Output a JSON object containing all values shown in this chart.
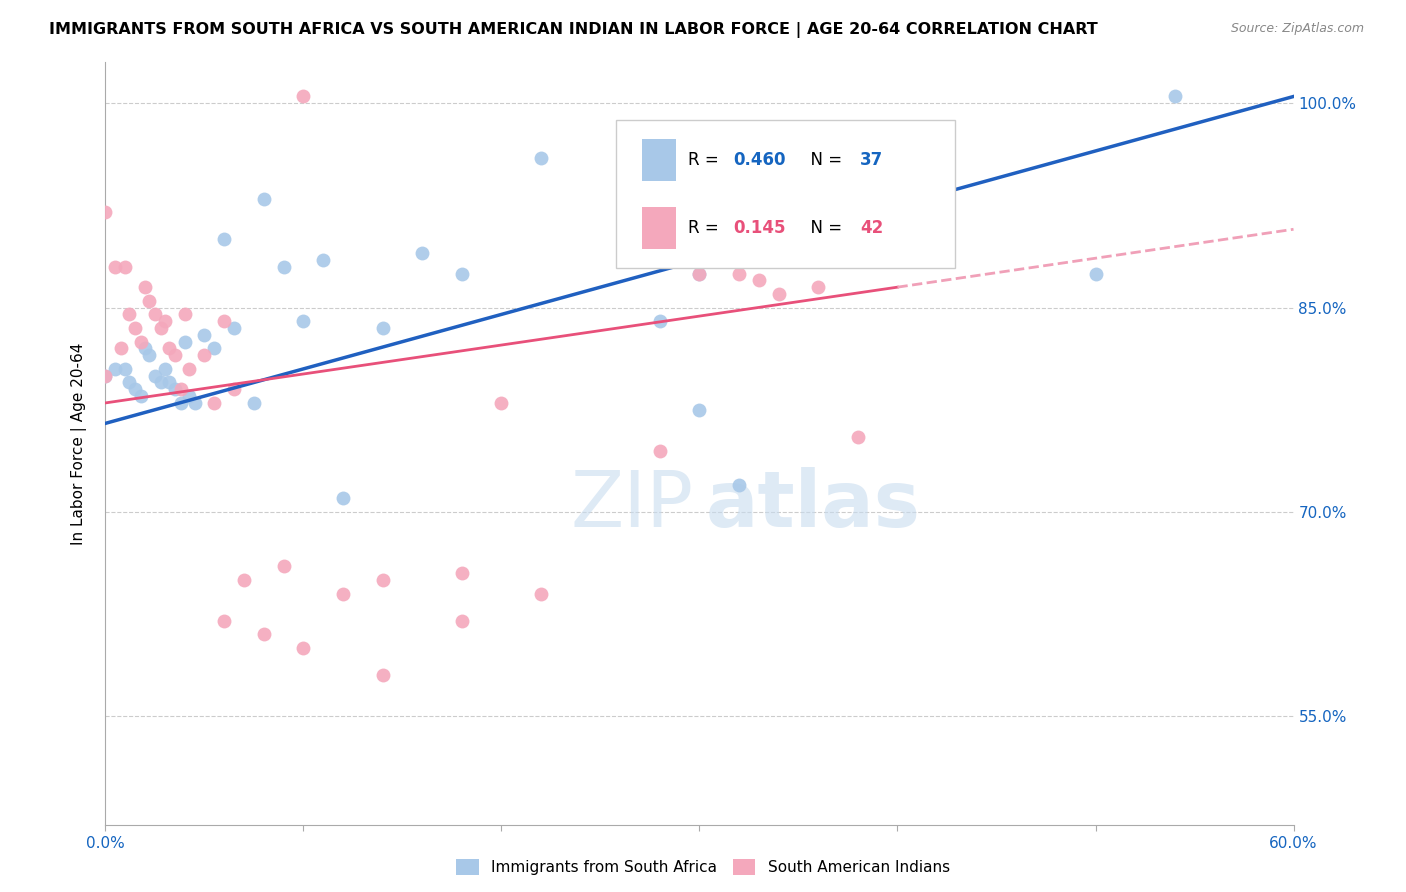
{
  "title": "IMMIGRANTS FROM SOUTH AFRICA VS SOUTH AMERICAN INDIAN IN LABOR FORCE | AGE 20-64 CORRELATION CHART",
  "source": "Source: ZipAtlas.com",
  "ylabel": "In Labor Force | Age 20-64",
  "x_min": 0.0,
  "x_max": 0.6,
  "y_min": 0.47,
  "y_max": 1.03,
  "y_ticks": [
    0.55,
    0.7,
    0.85,
    1.0
  ],
  "y_tick_labels": [
    "55.0%",
    "70.0%",
    "85.0%",
    "100.0%"
  ],
  "blue_R": 0.46,
  "blue_N": 37,
  "pink_R": 0.145,
  "pink_N": 42,
  "blue_color": "#A8C8E8",
  "pink_color": "#F4A8BC",
  "blue_line_color": "#2060C0",
  "pink_line_color": "#E8507A",
  "pink_dash_color": "#F0A0B8",
  "blue_points_x": [
    0.0,
    0.005,
    0.01,
    0.012,
    0.015,
    0.018,
    0.02,
    0.022,
    0.025,
    0.028,
    0.03,
    0.032,
    0.035,
    0.038,
    0.04,
    0.042,
    0.045,
    0.05,
    0.055,
    0.06,
    0.065,
    0.075,
    0.09,
    0.1,
    0.11,
    0.12,
    0.14,
    0.16,
    0.18,
    0.22,
    0.28,
    0.3,
    0.32,
    0.5,
    0.54,
    0.3,
    0.08
  ],
  "blue_points_y": [
    0.8,
    0.805,
    0.805,
    0.795,
    0.79,
    0.785,
    0.82,
    0.815,
    0.8,
    0.795,
    0.805,
    0.795,
    0.79,
    0.78,
    0.825,
    0.785,
    0.78,
    0.83,
    0.82,
    0.9,
    0.835,
    0.78,
    0.88,
    0.84,
    0.885,
    0.71,
    0.835,
    0.89,
    0.875,
    0.96,
    0.84,
    0.775,
    0.72,
    0.875,
    1.005,
    0.875,
    0.93
  ],
  "pink_points_x": [
    0.0,
    0.0,
    0.005,
    0.008,
    0.01,
    0.012,
    0.015,
    0.018,
    0.02,
    0.022,
    0.025,
    0.028,
    0.03,
    0.032,
    0.035,
    0.038,
    0.04,
    0.042,
    0.05,
    0.055,
    0.06,
    0.065,
    0.07,
    0.09,
    0.1,
    0.12,
    0.14,
    0.18,
    0.22,
    0.28,
    0.32,
    0.33,
    0.34,
    0.36,
    0.38,
    0.18,
    0.06,
    0.08,
    0.1,
    0.14,
    0.2,
    0.3
  ],
  "pink_points_y": [
    0.8,
    0.92,
    0.88,
    0.82,
    0.88,
    0.845,
    0.835,
    0.825,
    0.865,
    0.855,
    0.845,
    0.835,
    0.84,
    0.82,
    0.815,
    0.79,
    0.845,
    0.805,
    0.815,
    0.78,
    0.84,
    0.79,
    0.65,
    0.66,
    1.005,
    0.64,
    0.65,
    0.655,
    0.64,
    0.745,
    0.875,
    0.87,
    0.86,
    0.865,
    0.755,
    0.62,
    0.62,
    0.61,
    0.6,
    0.58,
    0.78,
    0.875
  ]
}
